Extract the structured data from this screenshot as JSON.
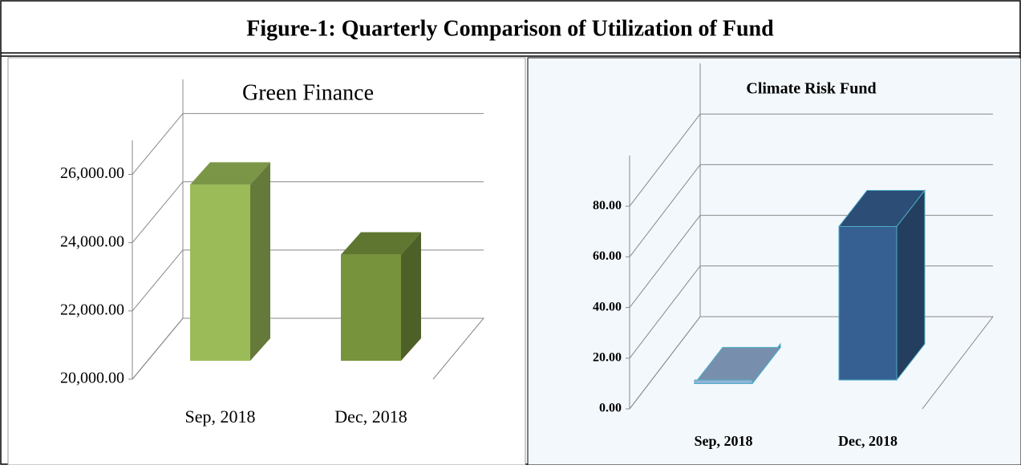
{
  "figure_title": "Figure-1: Quarterly Comparison of Utilization of Fund",
  "chart_data": [
    {
      "type": "bar3d",
      "title": "Green Finance",
      "categories": [
        "Sep, 2018",
        "Dec, 2018"
      ],
      "values": [
        25700,
        23650
      ],
      "colors": [
        "#9bbb59",
        "#77933c"
      ],
      "ylim": [
        20000,
        27000
      ],
      "yticks": [
        {
          "value": 20000,
          "label": "20,000.00"
        },
        {
          "value": 22000,
          "label": "22,000.00"
        },
        {
          "value": 24000,
          "label": "24,000.00"
        },
        {
          "value": 26000,
          "label": "26,000.00"
        }
      ],
      "grid": true
    },
    {
      "type": "bar3d",
      "title": "Climate Risk Fund",
      "categories": [
        "Sep, 2018",
        "Dec, 2018"
      ],
      "values": [
        10,
        72
      ],
      "colors": [
        "#95b3d7",
        "#376092"
      ],
      "ylim": [
        0,
        100
      ],
      "yticks": [
        {
          "value": 0,
          "label": "0.00"
        },
        {
          "value": 20,
          "label": "20.00"
        },
        {
          "value": 40,
          "label": "40.00"
        },
        {
          "value": 60,
          "label": "60.00"
        },
        {
          "value": 80,
          "label": "80.00"
        }
      ],
      "grid": true
    }
  ]
}
